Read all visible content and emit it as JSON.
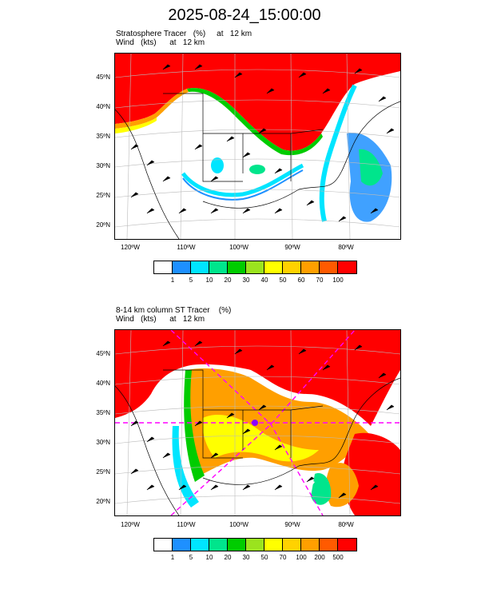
{
  "title": "2025-08-24_15:00:00",
  "chart_data": [
    {
      "type": "heatmap",
      "title_line1": "Stratosphere Tracer   (%)     at   12 km",
      "title_line2": "Wind   (kts)      at   12 km",
      "lat_ticks": [
        "45ºN",
        "40ºN",
        "35ºN",
        "30ºN",
        "25ºN",
        "20ºN"
      ],
      "lon_ticks": [
        "120ºW",
        "110ºW",
        "100ºW",
        "90ºW",
        "80ºW"
      ],
      "colorbar": {
        "levels": [
          "1",
          "5",
          "10",
          "20",
          "30",
          "40",
          "50",
          "60",
          "70",
          "100"
        ],
        "colors": [
          "#ffffff",
          "#1e90ff",
          "#00e5ff",
          "#00e58c",
          "#00cc00",
          "#9be31e",
          "#ffff00",
          "#ffd200",
          "#ff9f00",
          "#ff5a00",
          "#ff0000"
        ]
      }
    },
    {
      "type": "heatmap",
      "title_line1": "8-14 km column ST Tracer    (%)",
      "title_line2": "Wind   (kts)      at   12 km",
      "lat_ticks": [
        "45ºN",
        "40ºN",
        "35ºN",
        "30ºN",
        "25ºN",
        "20ºN"
      ],
      "lon_ticks": [
        "120ºW",
        "110ºW",
        "100ºW",
        "90ºW",
        "80ºW"
      ],
      "colorbar": {
        "levels": [
          "1",
          "5",
          "10",
          "20",
          "30",
          "50",
          "70",
          "100",
          "200",
          "500"
        ],
        "colors": [
          "#ffffff",
          "#1e90ff",
          "#00e5ff",
          "#00e58c",
          "#00cc00",
          "#9be31e",
          "#ffff00",
          "#ffd200",
          "#ff9f00",
          "#ff5a00",
          "#ff0000"
        ]
      }
    }
  ]
}
